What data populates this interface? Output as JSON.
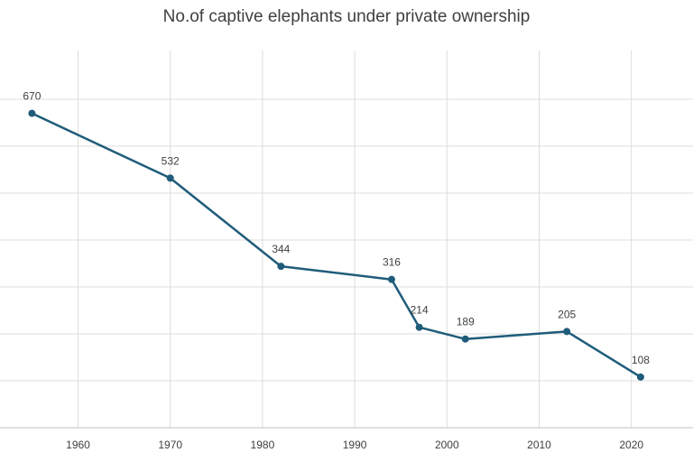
{
  "chart_data": {
    "type": "line",
    "title": "No.of captive elephants under private ownership",
    "xlabel": "",
    "ylabel": "",
    "x": [
      1955,
      1970,
      1982,
      1994,
      1997,
      2002,
      2013,
      2021
    ],
    "values": [
      670,
      532,
      344,
      316,
      214,
      189,
      205,
      108
    ],
    "xlim": [
      1952,
      2027
    ],
    "ylim": [
      0,
      800
    ],
    "x_ticks": [
      1960,
      1970,
      1980,
      1990,
      2000,
      2010,
      2020
    ],
    "y_gridlines": [
      100,
      200,
      300,
      400,
      500,
      600,
      700
    ],
    "grid": true,
    "legend": "none",
    "line_color": "#1F5C7A",
    "marker_color": "#1F5C7A"
  }
}
